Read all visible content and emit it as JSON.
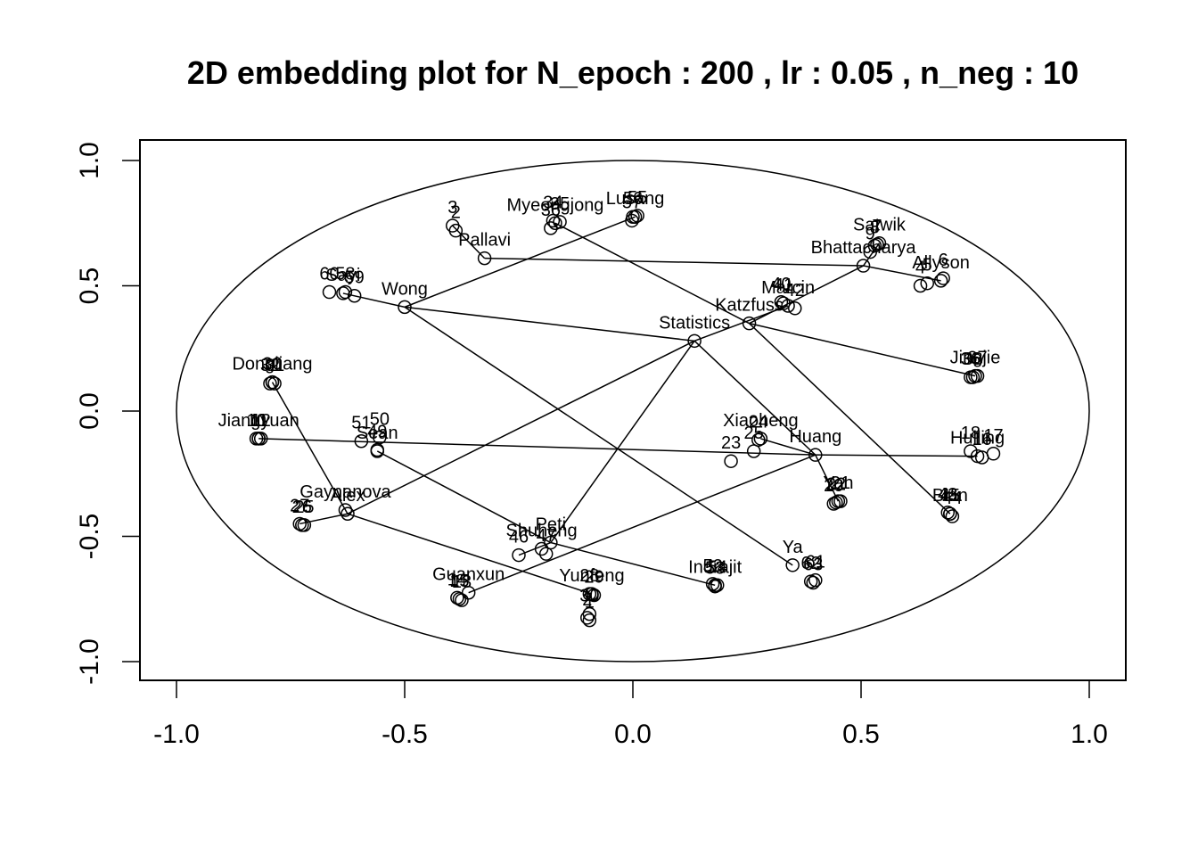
{
  "chart_data": {
    "type": "scatter",
    "title": "2D embedding plot for N_epoch : 200 , lr : 0.05 , n_neg : 10",
    "xlabel": "",
    "ylabel": "",
    "xlim": [
      -1.08,
      1.08
    ],
    "ylim": [
      -1.08,
      1.08
    ],
    "x_ticks": [
      -1.0,
      -0.5,
      0.0,
      0.5,
      1.0
    ],
    "y_ticks": [
      -1.0,
      -0.5,
      0.0,
      0.5,
      1.0
    ],
    "x_tick_labels": [
      "-1.0",
      "-0.5",
      "0.0",
      "0.5",
      "1.0"
    ],
    "y_tick_labels": [
      "-1.0",
      "-0.5",
      "0.0",
      "0.5",
      "1.0"
    ],
    "grid": false,
    "unit_circle": true,
    "points": [
      {
        "label": "Statistics",
        "x": 0.135,
        "y": 0.28
      },
      {
        "label": "Pallavi",
        "x": -0.325,
        "y": 0.61
      },
      {
        "label": "3",
        "x": -0.395,
        "y": 0.74
      },
      {
        "label": "2",
        "x": -0.388,
        "y": 0.72
      },
      {
        "label": "Myeongjong",
        "x": -0.17,
        "y": 0.75
      },
      {
        "label": "34",
        "x": -0.175,
        "y": 0.76
      },
      {
        "label": "35",
        "x": -0.16,
        "y": 0.755
      },
      {
        "label": "36",
        "x": -0.18,
        "y": 0.73
      },
      {
        "label": "Lusang",
        "x": 0.005,
        "y": 0.775
      },
      {
        "label": "55",
        "x": 0.01,
        "y": 0.78
      },
      {
        "label": "56",
        "x": 0.0,
        "y": 0.775
      },
      {
        "label": "57",
        "x": -0.002,
        "y": 0.76
      },
      {
        "label": "Sayi",
        "x": -0.635,
        "y": 0.47
      },
      {
        "label": "60",
        "x": -0.665,
        "y": 0.475
      },
      {
        "label": "58",
        "x": -0.63,
        "y": 0.475
      },
      {
        "label": "59",
        "x": -0.61,
        "y": 0.46
      },
      {
        "label": "Wong",
        "x": -0.5,
        "y": 0.415
      },
      {
        "label": "Satwik",
        "x": 0.54,
        "y": 0.67
      },
      {
        "label": "7",
        "x": 0.535,
        "y": 0.665
      },
      {
        "label": "8",
        "x": 0.53,
        "y": 0.66
      },
      {
        "label": "9",
        "x": 0.52,
        "y": 0.635
      },
      {
        "label": "Bhattacharya",
        "x": 0.505,
        "y": 0.58
      },
      {
        "label": "Allyson",
        "x": 0.675,
        "y": 0.52
      },
      {
        "label": "5",
        "x": 0.645,
        "y": 0.51
      },
      {
        "label": "6",
        "x": 0.68,
        "y": 0.53
      },
      {
        "label": "4",
        "x": 0.63,
        "y": 0.5
      },
      {
        "label": "Marcin",
        "x": 0.34,
        "y": 0.42
      },
      {
        "label": "40",
        "x": 0.325,
        "y": 0.435
      },
      {
        "label": "41",
        "x": 0.33,
        "y": 0.43
      },
      {
        "label": "42",
        "x": 0.355,
        "y": 0.41
      },
      {
        "label": "Katzfuss",
        "x": 0.255,
        "y": 0.35
      },
      {
        "label": "Jingjie",
        "x": 0.75,
        "y": 0.14
      },
      {
        "label": "36",
        "x": 0.74,
        "y": 0.135
      },
      {
        "label": "37",
        "x": 0.755,
        "y": 0.14
      },
      {
        "label": "38",
        "x": 0.745,
        "y": 0.135
      },
      {
        "label": "Dongliang",
        "x": -0.79,
        "y": 0.115
      },
      {
        "label": "30",
        "x": -0.79,
        "y": 0.115
      },
      {
        "label": "31",
        "x": -0.785,
        "y": 0.11
      },
      {
        "label": "32",
        "x": -0.795,
        "y": 0.11
      },
      {
        "label": "Jiangyuan",
        "x": -0.82,
        "y": -0.11
      },
      {
        "label": "10",
        "x": -0.825,
        "y": -0.11
      },
      {
        "label": "11",
        "x": -0.82,
        "y": -0.11
      },
      {
        "label": "12",
        "x": -0.815,
        "y": -0.11
      },
      {
        "label": "Sean",
        "x": -0.56,
        "y": -0.16
      },
      {
        "label": "51",
        "x": -0.595,
        "y": -0.12
      },
      {
        "label": "50",
        "x": -0.555,
        "y": -0.105
      },
      {
        "label": "49",
        "x": -0.56,
        "y": -0.155
      },
      {
        "label": "Xiaoheng",
        "x": 0.28,
        "y": -0.11
      },
      {
        "label": "24",
        "x": 0.275,
        "y": -0.115
      },
      {
        "label": "25",
        "x": 0.265,
        "y": -0.16
      },
      {
        "label": "23",
        "x": 0.215,
        "y": -0.2
      },
      {
        "label": "Huang",
        "x": 0.4,
        "y": -0.175
      },
      {
        "label": "Hulling",
        "x": 0.755,
        "y": -0.18
      },
      {
        "label": "18",
        "x": 0.74,
        "y": -0.16
      },
      {
        "label": "17",
        "x": 0.79,
        "y": -0.17
      },
      {
        "label": "16",
        "x": 0.765,
        "y": -0.185
      },
      {
        "label": "Yan",
        "x": 0.45,
        "y": -0.36
      },
      {
        "label": "20",
        "x": 0.44,
        "y": -0.37
      },
      {
        "label": "21",
        "x": 0.455,
        "y": -0.36
      },
      {
        "label": "22",
        "x": 0.445,
        "y": -0.365
      },
      {
        "label": "Bian",
        "x": 0.695,
        "y": -0.41
      },
      {
        "label": "43",
        "x": 0.69,
        "y": -0.405
      },
      {
        "label": "44",
        "x": 0.7,
        "y": -0.42
      },
      {
        "label": "45",
        "x": 0.695,
        "y": -0.41
      },
      {
        "label": "Gaynanova",
        "x": -0.63,
        "y": -0.395
      },
      {
        "label": "Alex",
        "x": -0.625,
        "y": -0.41
      },
      {
        "label": "27",
        "x": -0.73,
        "y": -0.45
      },
      {
        "label": "26",
        "x": -0.725,
        "y": -0.455
      },
      {
        "label": "25",
        "x": -0.72,
        "y": -0.455
      },
      {
        "label": "Peti",
        "x": -0.18,
        "y": -0.525
      },
      {
        "label": "Shuheng",
        "x": -0.2,
        "y": -0.55
      },
      {
        "label": "47",
        "x": -0.19,
        "y": -0.57
      },
      {
        "label": "46",
        "x": -0.25,
        "y": -0.575
      },
      {
        "label": "Ya",
        "x": 0.35,
        "y": -0.615
      },
      {
        "label": "62",
        "x": 0.39,
        "y": -0.68
      },
      {
        "label": "61",
        "x": 0.4,
        "y": -0.675
      },
      {
        "label": "63",
        "x": 0.395,
        "y": -0.685
      },
      {
        "label": "Indrajit",
        "x": 0.18,
        "y": -0.695
      },
      {
        "label": "52",
        "x": 0.175,
        "y": -0.69
      },
      {
        "label": "53",
        "x": 0.18,
        "y": -0.7
      },
      {
        "label": "54",
        "x": 0.185,
        "y": -0.695
      },
      {
        "label": "Guanxun",
        "x": -0.36,
        "y": -0.725
      },
      {
        "label": "14",
        "x": -0.385,
        "y": -0.745
      },
      {
        "label": "15",
        "x": -0.38,
        "y": -0.75
      },
      {
        "label": "13",
        "x": -0.375,
        "y": -0.755
      },
      {
        "label": "Yunfeng",
        "x": -0.09,
        "y": -0.73
      },
      {
        "label": "28",
        "x": -0.095,
        "y": -0.73
      },
      {
        "label": "29",
        "x": -0.085,
        "y": -0.735
      },
      {
        "label": "30",
        "x": -0.095,
        "y": -0.81
      },
      {
        "label": "2",
        "x": -0.1,
        "y": -0.825
      },
      {
        "label": "1",
        "x": -0.095,
        "y": -0.835
      }
    ],
    "segments": [
      [
        "Statistics",
        "Wong"
      ],
      [
        "Statistics",
        "Marcin"
      ],
      [
        "Statistics",
        "Huang"
      ],
      [
        "Statistics",
        "Alex"
      ],
      [
        "Statistics",
        "Peti"
      ],
      [
        "Wong",
        "Sayi"
      ],
      [
        "Wong",
        "Lusang"
      ],
      [
        "Wong",
        "Ya"
      ],
      [
        "Pallavi",
        "Bhattacharya"
      ],
      [
        "Pallavi",
        "3"
      ],
      [
        "Bhattacharya",
        "Satwik"
      ],
      [
        "Bhattacharya",
        "Allyson"
      ],
      [
        "Bhattacharya",
        "Katzfuss"
      ],
      [
        "Katzfuss",
        "Myeongjong"
      ],
      [
        "Katzfuss",
        "Jingjie"
      ],
      [
        "Katzfuss",
        "Bian"
      ],
      [
        "Huang",
        "Xiaoheng"
      ],
      [
        "Huang",
        "Jiangyuan"
      ],
      [
        "Huang",
        "Hulling"
      ],
      [
        "Huang",
        "Yan"
      ],
      [
        "Huang",
        "Guanxun"
      ],
      [
        "Alex",
        "Dongliang"
      ],
      [
        "Alex",
        "Yunfeng"
      ],
      [
        "Alex",
        "27"
      ],
      [
        "Peti",
        "Sean"
      ],
      [
        "Peti",
        "Indrajit"
      ],
      [
        "Peti",
        "46"
      ]
    ]
  }
}
